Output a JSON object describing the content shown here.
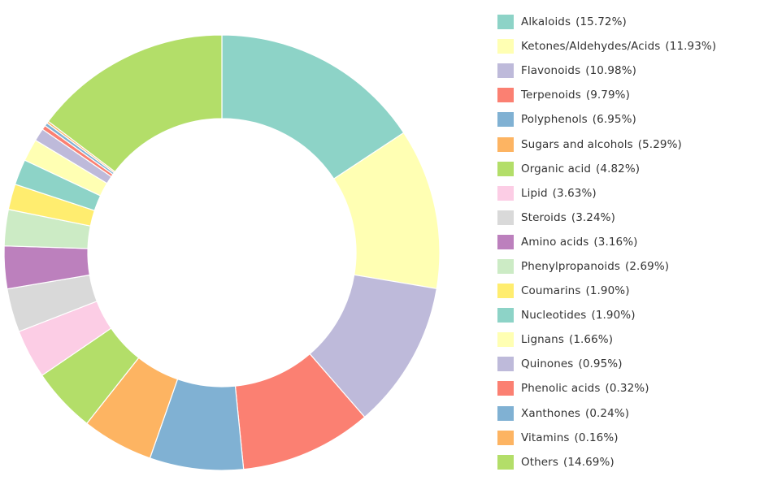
{
  "chart_data": {
    "type": "pie",
    "donut": true,
    "legend_position": "right",
    "slices": [
      {
        "label": "Alkaloids",
        "percent_text": "(15.72%)",
        "value": 15.72,
        "color": "#8dd3c7"
      },
      {
        "label": "Ketones/Aldehydes/Acids",
        "percent_text": "(11.93%)",
        "value": 11.93,
        "color": "#ffffb3"
      },
      {
        "label": "Flavonoids",
        "percent_text": "(10.98%)",
        "value": 10.98,
        "color": "#bebada"
      },
      {
        "label": "Terpenoids",
        "percent_text": "(9.79%)",
        "value": 9.79,
        "color": "#fb8072"
      },
      {
        "label": "Polyphenols",
        "percent_text": "(6.95%)",
        "value": 6.95,
        "color": "#80b1d3"
      },
      {
        "label": "Sugars and alcohols",
        "percent_text": "(5.29%)",
        "value": 5.29,
        "color": "#fdb462"
      },
      {
        "label": "Organic acid",
        "percent_text": "(4.82%)",
        "value": 4.82,
        "color": "#b3de69"
      },
      {
        "label": "Lipid",
        "percent_text": "(3.63%)",
        "value": 3.63,
        "color": "#fccde5"
      },
      {
        "label": "Steroids",
        "percent_text": "(3.24%)",
        "value": 3.24,
        "color": "#d9d9d9"
      },
      {
        "label": "Amino acids",
        "percent_text": "(3.16%)",
        "value": 3.16,
        "color": "#bc80bd"
      },
      {
        "label": "Phenylpropanoids",
        "percent_text": "(2.69%)",
        "value": 2.69,
        "color": "#ccebc5"
      },
      {
        "label": "Coumarins",
        "percent_text": "(1.90%)",
        "value": 1.9,
        "color": "#ffed6f"
      },
      {
        "label": "Nucleotides",
        "percent_text": "(1.90%)",
        "value": 1.9,
        "color": "#8dd3c7"
      },
      {
        "label": "Lignans",
        "percent_text": "(1.66%)",
        "value": 1.66,
        "color": "#ffffb3"
      },
      {
        "label": "Quinones",
        "percent_text": "(0.95%)",
        "value": 0.95,
        "color": "#bebada"
      },
      {
        "label": "Phenolic acids",
        "percent_text": "(0.32%)",
        "value": 0.32,
        "color": "#fb8072"
      },
      {
        "label": "Xanthones",
        "percent_text": "(0.24%)",
        "value": 0.24,
        "color": "#80b1d3"
      },
      {
        "label": "Vitamins",
        "percent_text": "(0.16%)",
        "value": 0.16,
        "color": "#fdb462"
      },
      {
        "label": "Others",
        "percent_text": "(14.69%)",
        "value": 14.69,
        "color": "#b3de69"
      }
    ]
  }
}
